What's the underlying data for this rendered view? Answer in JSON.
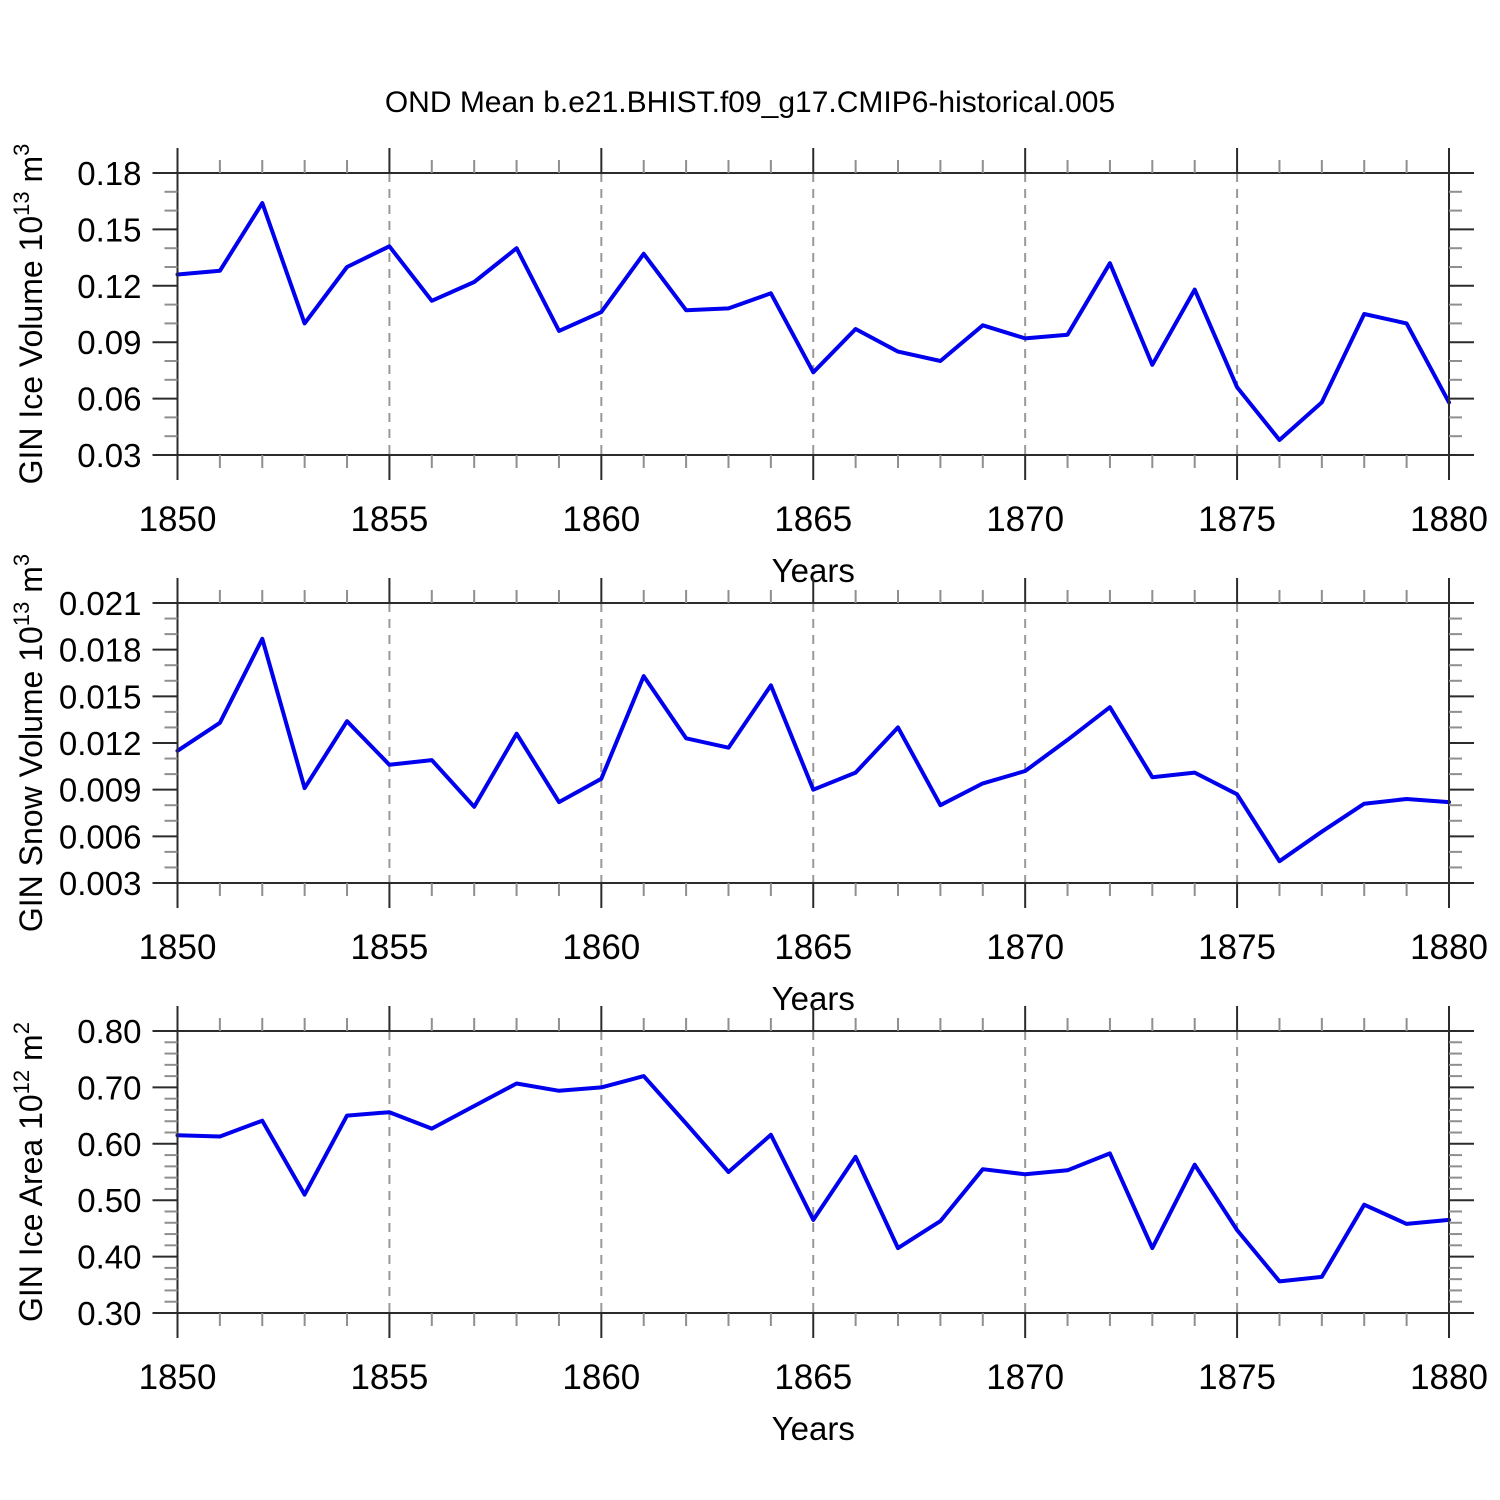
{
  "title": "OND Mean b.e21.BHIST.f09_g17.CMIP6-historical.005",
  "colors": {
    "line": "#0000ee",
    "box": "#2b2b2b",
    "major_tick": "#2b2b2b",
    "minor_tick": "#8f8f8f",
    "grid": "#999999",
    "text": "#000000",
    "background": "#ffffff"
  },
  "x_axis": {
    "label": "Years",
    "start": 1850,
    "end": 1880,
    "major_step": 5,
    "minor_step": 1,
    "years": [
      1850,
      1851,
      1852,
      1853,
      1854,
      1855,
      1856,
      1857,
      1858,
      1859,
      1860,
      1861,
      1862,
      1863,
      1864,
      1865,
      1866,
      1867,
      1868,
      1869,
      1870,
      1871,
      1872,
      1873,
      1874,
      1875,
      1876,
      1877,
      1878,
      1879,
      1880
    ],
    "xtick_labels": [
      "1850",
      "1855",
      "1860",
      "1865",
      "1870",
      "1875",
      "1880"
    ],
    "gridlines": [
      1855,
      1860,
      1865,
      1870,
      1875
    ]
  },
  "chart_data": [
    {
      "type": "line",
      "name": "gin-ice-volume",
      "title": "",
      "xlabel": "Years",
      "ylabel": "GIN Ice Volume 10^13 m^3",
      "ylabel_parts": [
        {
          "t": "GIN Ice Volume 10"
        },
        {
          "t": "13",
          "sup": true
        },
        {
          "t": " m"
        },
        {
          "t": "3",
          "sup": true
        }
      ],
      "ylim": [
        0.03,
        0.18
      ],
      "ymajor": 0.03,
      "yminor": 0.01,
      "ytick_labels": [
        "0.03",
        "0.06",
        "0.09",
        "0.12",
        "0.15",
        "0.18"
      ],
      "legend": "none",
      "grid": "vertical-dashed",
      "values": [
        0.126,
        0.128,
        0.164,
        0.1,
        0.13,
        0.141,
        0.112,
        0.122,
        0.14,
        0.096,
        0.106,
        0.137,
        0.107,
        0.108,
        0.116,
        0.074,
        0.097,
        0.085,
        0.08,
        0.099,
        0.092,
        0.094,
        0.132,
        0.078,
        0.118,
        0.066,
        0.038,
        0.058,
        0.105,
        0.1,
        0.058
      ]
    },
    {
      "type": "line",
      "name": "gin-snow-volume",
      "title": "",
      "xlabel": "Years",
      "ylabel": "GIN Snow Volume 10^13 m^3",
      "ylabel_parts": [
        {
          "t": "GIN Snow Volume 10"
        },
        {
          "t": "13",
          "sup": true
        },
        {
          "t": " m"
        },
        {
          "t": "3",
          "sup": true
        }
      ],
      "ylim": [
        0.003,
        0.021
      ],
      "ymajor": 0.003,
      "yminor": 0.001,
      "ytick_labels": [
        "0.003",
        "0.006",
        "0.009",
        "0.012",
        "0.015",
        "0.018",
        "0.021"
      ],
      "legend": "none",
      "grid": "vertical-dashed",
      "values": [
        0.0115,
        0.0133,
        0.0187,
        0.0091,
        0.0134,
        0.0106,
        0.0109,
        0.0079,
        0.0126,
        0.0082,
        0.0097,
        0.0163,
        0.0123,
        0.0117,
        0.0157,
        0.009,
        0.0101,
        0.013,
        0.008,
        0.0094,
        0.0102,
        0.0122,
        0.0143,
        0.0098,
        0.0101,
        0.0087,
        0.0044,
        0.0063,
        0.0081,
        0.0084,
        0.0082
      ]
    },
    {
      "type": "line",
      "name": "gin-ice-area",
      "title": "",
      "xlabel": "Years",
      "ylabel": "GIN Ice Area 10^12 m^2",
      "ylabel_parts": [
        {
          "t": "GIN Ice Area 10"
        },
        {
          "t": "12",
          "sup": true
        },
        {
          "t": " m"
        },
        {
          "t": "2",
          "sup": true
        }
      ],
      "ylim": [
        0.3,
        0.8
      ],
      "ymajor": 0.1,
      "yminor": 0.02,
      "ytick_labels": [
        "0.30",
        "0.40",
        "0.50",
        "0.60",
        "0.70",
        "0.80"
      ],
      "legend": "none",
      "grid": "vertical-dashed",
      "values": [
        0.615,
        0.613,
        0.641,
        0.51,
        0.65,
        0.656,
        0.627,
        0.667,
        0.707,
        0.694,
        0.7,
        0.72,
        0.636,
        0.55,
        0.616,
        0.465,
        0.577,
        0.415,
        0.463,
        0.555,
        0.546,
        0.553,
        0.583,
        0.415,
        0.563,
        0.447,
        0.356,
        0.364,
        0.492,
        0.458,
        0.465
      ]
    }
  ]
}
